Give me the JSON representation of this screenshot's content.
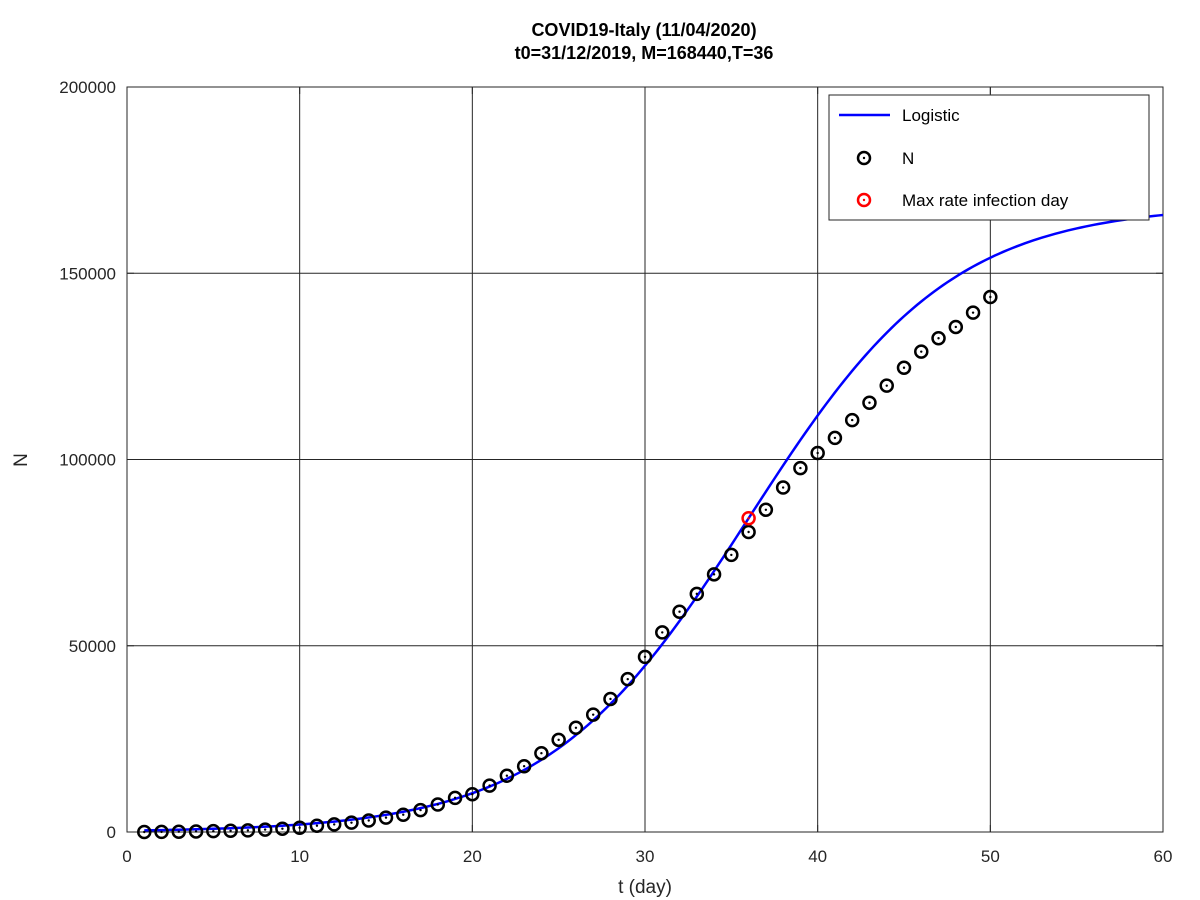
{
  "chart_data": {
    "type": "scatter",
    "title_line1": "COVID19-Italy (11/04/2020)",
    "title_line2": "t0=31/12/2019, M=168440,T=36",
    "xlabel": "t (day)",
    "ylabel": "N",
    "xlim": [
      0,
      60
    ],
    "ylim": [
      0,
      200000
    ],
    "xticks": [
      0,
      10,
      20,
      30,
      40,
      50,
      60
    ],
    "yticks": [
      0,
      50000,
      100000,
      150000,
      200000
    ],
    "grid": true,
    "legend_position": "top-right",
    "legend": {
      "logistic": "Logistic",
      "n": "N",
      "max": "Max rate infection day"
    },
    "logistic": {
      "M": 168440,
      "T": 36,
      "k": 0.17
    },
    "observed": {
      "t": [
        1,
        2,
        3,
        4,
        5,
        6,
        7,
        8,
        9,
        10,
        11,
        12,
        13,
        14,
        15,
        16,
        17,
        18,
        19,
        20,
        21,
        22,
        23,
        24,
        25,
        26,
        27,
        28,
        29,
        30,
        31,
        32,
        33,
        34,
        35,
        36,
        37,
        38,
        39,
        40,
        41,
        42,
        43,
        44,
        45,
        46,
        47,
        48,
        49,
        50
      ],
      "n": [
        3,
        20,
        79,
        150,
        227,
        320,
        445,
        650,
        888,
        1128,
        1694,
        2036,
        2502,
        3089,
        3858,
        4636,
        5883,
        7375,
        9172,
        10149,
        12462,
        15113,
        17660,
        21157,
        24747,
        27980,
        31506,
        35713,
        41035,
        47021,
        53578,
        59138,
        63927,
        69176,
        74386,
        80539,
        86498,
        92472,
        97689,
        101739,
        105792,
        110574,
        115242,
        119827,
        124632,
        128948,
        132547,
        135586,
        139422,
        143626
      ]
    },
    "max_rate_point": {
      "t": 36,
      "n": 84220
    },
    "colors": {
      "line": "#0000ff",
      "marker": "#000000",
      "max_marker": "#ff0000",
      "grid": "#262626"
    }
  }
}
